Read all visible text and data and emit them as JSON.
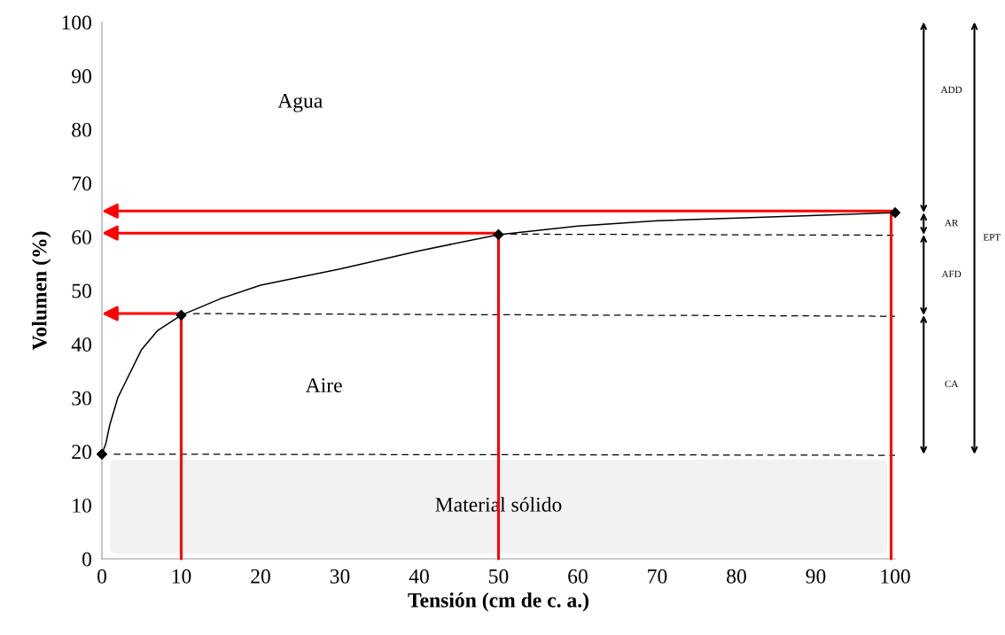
{
  "chart_data": {
    "type": "line",
    "xlabel": "Tensión (cm de c. a.)",
    "ylabel": "Volumen (%)",
    "xlim": [
      0,
      100
    ],
    "ylim": [
      0,
      100
    ],
    "xticks": [
      0,
      10,
      20,
      30,
      40,
      50,
      60,
      70,
      80,
      90,
      100
    ],
    "yticks": [
      0,
      10,
      20,
      30,
      40,
      50,
      60,
      70,
      80,
      90,
      100
    ],
    "grid": false,
    "legend": false,
    "series": [
      {
        "color": "#000000",
        "marker": "none",
        "line_style": "solid",
        "x": [
          0,
          0.5,
          1,
          2,
          3,
          5,
          7,
          10,
          15,
          20,
          30,
          40,
          50,
          60,
          70,
          80,
          90,
          100
        ],
        "values": [
          19.5,
          21.5,
          25,
          30,
          33,
          39,
          42.5,
          45.4,
          48.5,
          51,
          54,
          57.4,
          60.4,
          62,
          63,
          63.5,
          64,
          64.5
        ]
      },
      {
        "type": "scatter",
        "color": "#000000",
        "marker": "diamond",
        "x": [
          0,
          10,
          50,
          100
        ],
        "values": [
          19.5,
          45.4,
          60.4,
          64.5
        ]
      },
      {
        "type": "line",
        "color": "#000000",
        "marker": "none",
        "line_style": "dashed",
        "x": [
          1.5,
          100
        ],
        "values": [
          19.5,
          19.3
        ]
      },
      {
        "type": "line",
        "color": "#000000",
        "marker": "none",
        "line_style": "dashed",
        "x": [
          11.5,
          100
        ],
        "values": [
          45.7,
          45.2
        ]
      },
      {
        "type": "line",
        "color": "#000000",
        "marker": "none",
        "line_style": "dashed",
        "x": [
          51.5,
          100
        ],
        "values": [
          60.5,
          60.3
        ]
      }
    ],
    "bands": [
      {
        "axis": "y",
        "from": 1,
        "to": 18.5,
        "label": "Material sólido",
        "color": "#f2f2f2"
      }
    ],
    "annotations": [
      "Agua",
      "Aire",
      "ADD",
      "AR",
      "AFD",
      "CA",
      "EPT"
    ]
  }
}
